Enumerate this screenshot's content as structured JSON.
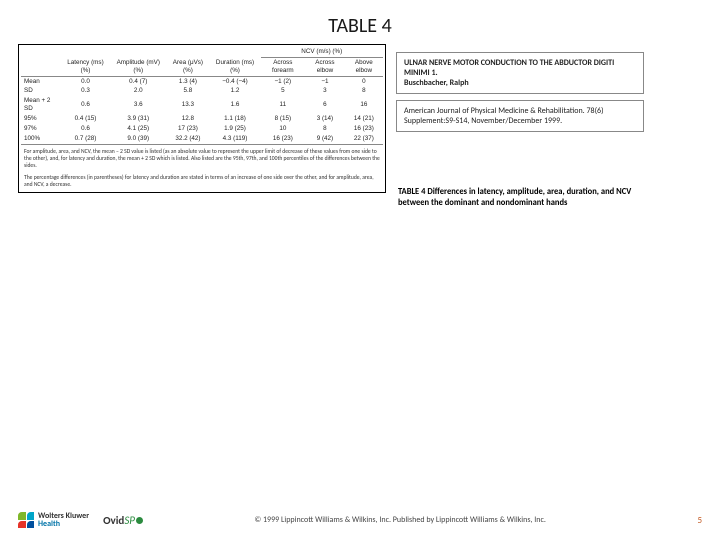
{
  "title": "TABLE 4",
  "table": {
    "columns_main": [
      "Latency\n(ms) (%)",
      "Amplitude\n(mV) (%)",
      "Area\n(μVs) (%)",
      "Duration\n(ms) (%)"
    ],
    "ncv_super": "NCV (m/s) (%)",
    "ncv_cols": [
      "Across forearm",
      "Across elbow",
      "Above elbow"
    ],
    "rows": [
      {
        "label": "Mean",
        "v": [
          "0.0",
          "0.4 (7)",
          "1.3 (4)",
          "−0.4 (−4)",
          "−1 (2)",
          "−1",
          "0"
        ]
      },
      {
        "label": "SD",
        "v": [
          "0.3",
          "2.0",
          "5.8",
          "1.2",
          "5",
          "3",
          "8"
        ]
      },
      {
        "label": "Mean + 2 SD",
        "v": [
          "0.6",
          "3.6",
          "13.3",
          "1.6",
          "11",
          "6",
          "16"
        ]
      },
      {
        "label": "95%",
        "v": [
          "0.4 (15)",
          "3.9 (31)",
          "12.8",
          "1.1 (18)",
          "8 (15)",
          "3 (14)",
          "14 (21)"
        ]
      },
      {
        "label": "97%",
        "v": [
          "0.6",
          "4.1 (25)",
          "17 (23)",
          "1.9 (25)",
          "10",
          "8",
          "16 (23)"
        ]
      },
      {
        "label": "100%",
        "v": [
          "0.7 (28)",
          "9.0 (39)",
          "32.2 (42)",
          "4.3 (119)",
          "16 (23)",
          "9 (42)",
          "22 (37)"
        ]
      }
    ],
    "footnote1": "For amplitude, area, and NCV, the mean − 2 SD value is listed (as an absolute value to represent the upper limit of decrease of these values from one side to the other), and, for latency and duration, the mean + 2 SD which is listed. Also listed are the 95th, 97th, and 100th percentiles of the differences between the sides.",
    "footnote2": "The percentage differences (in parentheses) for latency and duration are stated in terms of an increase of one side over the other, and for amplitude, area, and NCV, a decrease."
  },
  "info1": {
    "line1": "ULNAR NERVE MOTOR CONDUCTION TO THE ABDUCTOR DIGITI MINIMI 1.",
    "line2": "Buschbacher, Ralph"
  },
  "info2": "American Journal of Physical Medicine & Rehabilitation. 78(6) Supplement:S9-S14, November/December 1999.",
  "table_desc": "TABLE 4  Differences in latency, amplitude, area, duration, and NCV between the dominant and nondominant hands",
  "footer": {
    "wk_name": "Wolters Kluwer",
    "health": "Health",
    "ovid": "Ovid",
    "sp": "SP",
    "copyright": "© 1999 Lippincott Williams & Wilkins, Inc. Published by Lippincott Williams & Wilkins, Inc.",
    "page": "5"
  }
}
